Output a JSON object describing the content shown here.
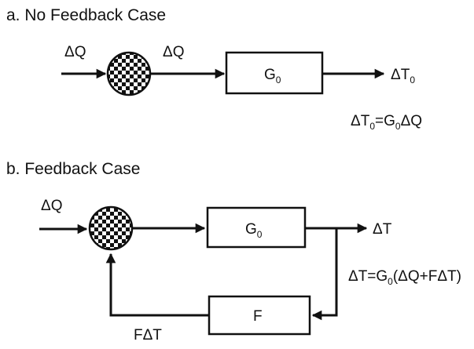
{
  "diagram_a": {
    "title": "a. No Feedback Case",
    "input_label": "ΔQ",
    "mid_label": "ΔQ",
    "block_main": "G",
    "block_sub": "0",
    "output_main": "ΔT",
    "output_sub": "0",
    "eq_lhs_main": "ΔT",
    "eq_lhs_sub": "0",
    "eq_rhs_main": "=G",
    "eq_rhs_sub": "0",
    "eq_rhs_tail": "ΔQ"
  },
  "diagram_b": {
    "title": "b. Feedback Case",
    "input_label": "ΔQ",
    "block_main": "G",
    "block_sub": "0",
    "output_label": "ΔT",
    "feedback_block": "F",
    "feedback_label": "FΔT",
    "eq_head": "ΔT=G",
    "eq_sub": "0",
    "eq_tail": "(ΔQ+FΔT)"
  },
  "colors": {
    "ink": "#111111",
    "checker_dark": "#111111",
    "checker_light": "#ffffff"
  }
}
